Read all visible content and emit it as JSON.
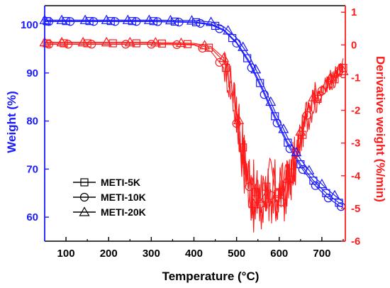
{
  "chart_data": {
    "type": "line",
    "xlabel": "Temperature  (°C)",
    "ylabel_left": "Weight  (%)",
    "ylabel_right": "Derivative weight  (%/min)",
    "xlim": [
      50,
      755
    ],
    "ylim_left": [
      55,
      104
    ],
    "ylim_right": [
      -6,
      1.2
    ],
    "x_ticks": [
      100,
      200,
      300,
      400,
      500,
      600,
      700
    ],
    "y_left_ticks": [
      60,
      70,
      80,
      90,
      100
    ],
    "y_right_ticks": [
      1,
      0,
      -1,
      -2,
      -3,
      -4,
      -5,
      -6
    ],
    "grid": false,
    "legend_position": "bottom-left",
    "colors": {
      "weight": "#1a1aff",
      "derivative": "#ff1a1a",
      "axis_left": "#1a1aff",
      "axis_right": "#ff1a1a",
      "legend": "#000000"
    },
    "series": [
      {
        "name": "METI-5K",
        "marker": "square",
        "weight": {
          "x": [
            50,
            100,
            200,
            300,
            400,
            440,
            470,
            500,
            530,
            560,
            590,
            620,
            650,
            680,
            710,
            740,
            750
          ],
          "y": [
            100.8,
            100.8,
            100.8,
            100.8,
            100.6,
            100.2,
            99.0,
            96.4,
            92.4,
            87.0,
            81.0,
            75.5,
            71.0,
            67.6,
            65.0,
            63.0,
            62.5
          ]
        },
        "derivative": {
          "x": [
            50,
            100,
            200,
            300,
            400,
            440,
            470,
            490,
            505,
            520,
            535,
            550,
            565,
            580,
            600,
            620,
            640,
            660,
            680,
            700,
            720,
            740,
            750
          ],
          "y": [
            0.05,
            0.05,
            0.05,
            0.05,
            0.02,
            -0.1,
            -0.5,
            -1.3,
            -2.4,
            -3.5,
            -4.3,
            -4.6,
            -4.4,
            -4.2,
            -4.5,
            -4.3,
            -3.5,
            -2.5,
            -1.8,
            -1.5,
            -1.2,
            -0.9,
            -0.7
          ]
        },
        "markers_weight_x": [
          55,
          100,
          155,
          205,
          255,
          305,
          355,
          405,
          450,
          490,
          525,
          555,
          590,
          620,
          650,
          680,
          710,
          740
        ],
        "markers_deriv_x": [
          55,
          95,
          150,
          210,
          265,
          325,
          385,
          435,
          475,
          515,
          545,
          570,
          600,
          630,
          655,
          690,
          730,
          750
        ]
      },
      {
        "name": "METI-10K",
        "marker": "circle",
        "weight": {
          "x": [
            50,
            100,
            200,
            300,
            400,
            440,
            470,
            500,
            530,
            560,
            590,
            620,
            650,
            680,
            710,
            740,
            750
          ],
          "y": [
            100.7,
            100.7,
            100.7,
            100.7,
            100.5,
            100.0,
            98.8,
            96.2,
            92.0,
            86.5,
            80.5,
            75.0,
            70.5,
            67.0,
            64.3,
            62.4,
            62.0
          ]
        },
        "derivative": {
          "x": [
            50,
            100,
            200,
            300,
            400,
            440,
            470,
            490,
            505,
            520,
            535,
            550,
            565,
            580,
            600,
            620,
            640,
            660,
            680,
            700,
            720,
            740,
            750
          ],
          "y": [
            0.02,
            0.02,
            0.02,
            0.02,
            0.0,
            -0.2,
            -0.7,
            -1.6,
            -2.8,
            -3.8,
            -4.6,
            -4.9,
            -4.8,
            -4.6,
            -4.9,
            -4.5,
            -3.3,
            -2.3,
            -1.7,
            -1.4,
            -1.1,
            -0.8,
            -0.6
          ]
        },
        "markers_weight_x": [
          60,
          110,
          165,
          215,
          265,
          315,
          365,
          415,
          460,
          500,
          535,
          565,
          595,
          625,
          655,
          685,
          715,
          745
        ],
        "markers_deriv_x": [
          60,
          105,
          160,
          240,
          300,
          360,
          420,
          460,
          500,
          530,
          555,
          580,
          605,
          640,
          665,
          700,
          740
        ]
      },
      {
        "name": "METI-20K",
        "marker": "triangle",
        "weight": {
          "x": [
            50,
            100,
            200,
            300,
            400,
            440,
            470,
            500,
            530,
            560,
            590,
            620,
            650,
            680,
            710,
            740,
            750
          ],
          "y": [
            101.0,
            101.0,
            101.0,
            101.0,
            100.9,
            100.6,
            99.6,
            97.3,
            93.5,
            88.0,
            82.0,
            76.5,
            72.0,
            68.6,
            66.0,
            63.8,
            63.2
          ]
        },
        "derivative": {
          "x": [
            50,
            100,
            200,
            300,
            400,
            440,
            470,
            490,
            505,
            520,
            535,
            550,
            565,
            580,
            600,
            620,
            640,
            660,
            680,
            700,
            720,
            740,
            750
          ],
          "y": [
            0.08,
            0.08,
            0.08,
            0.08,
            0.05,
            -0.05,
            -0.4,
            -1.2,
            -2.3,
            -3.6,
            -4.8,
            -5.0,
            -4.7,
            -4.4,
            -4.6,
            -4.1,
            -3.1,
            -2.2,
            -1.6,
            -1.3,
            -1.0,
            -0.8,
            -0.8
          ]
        },
        "markers_weight_x": [
          50,
          90,
          145,
          195,
          245,
          295,
          345,
          395,
          440,
          480,
          515,
          545,
          580,
          610,
          640,
          670,
          700,
          730
        ],
        "markers_deriv_x": [
          50,
          90,
          140,
          195,
          250,
          310,
          370,
          425,
          470,
          505,
          540,
          565,
          595,
          620,
          650,
          680,
          720,
          750
        ]
      }
    ]
  }
}
